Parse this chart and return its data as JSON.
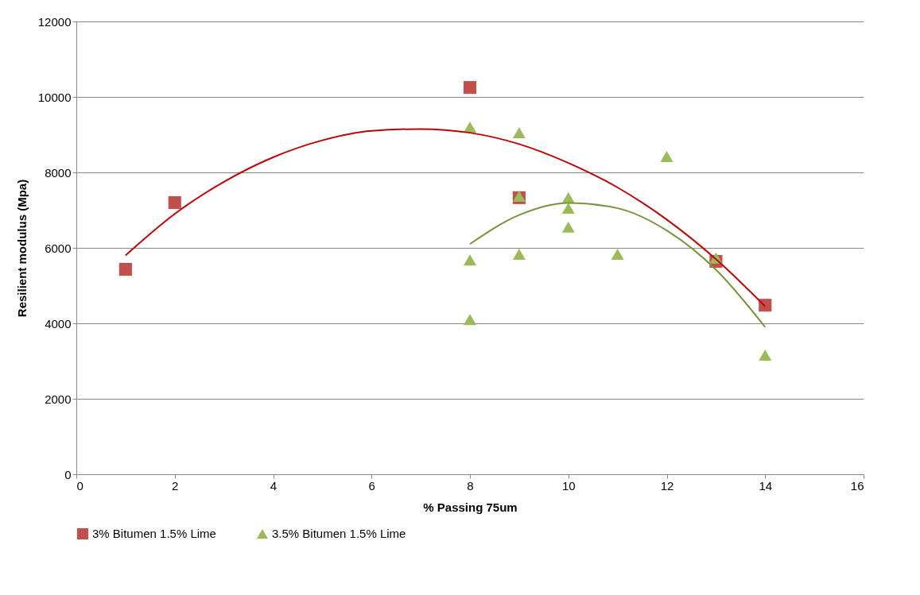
{
  "chart_data": {
    "type": "scatter",
    "xlabel": "% Passing 75um",
    "ylabel": "Resilient modulus (Mpa)",
    "xlim": [
      0,
      16
    ],
    "xticks": [
      0,
      2,
      4,
      6,
      8,
      10,
      12,
      14,
      16
    ],
    "ylim": [
      0,
      12000
    ],
    "yticks": [
      0,
      2000,
      4000,
      6000,
      8000,
      10000,
      12000
    ],
    "grid": "y",
    "legend": "bottom",
    "series": [
      {
        "name": "3% Bitumen 1.5% Lime",
        "color": "#c0504d",
        "marker": "square",
        "x": [
          1,
          2,
          8,
          9,
          13,
          14
        ],
        "values": [
          5430,
          7200,
          10250,
          7330,
          5640,
          4480
        ]
      },
      {
        "name": "3.5% Bitumen 1.5% Lime",
        "color": "#9bbb59",
        "marker": "triangle",
        "x": [
          8,
          8,
          8,
          9,
          9,
          9,
          10,
          10,
          10,
          11,
          12,
          13,
          14
        ],
        "values": [
          9200,
          5680,
          4100,
          9050,
          7370,
          5830,
          7330,
          7050,
          6550,
          5830,
          8420,
          5730,
          3160
        ]
      },
      {
        "type": "line",
        "color": "#c00000",
        "x": [
          1,
          2,
          3,
          4,
          5,
          6,
          7,
          8,
          9,
          10,
          11,
          12,
          13,
          14
        ],
        "values": [
          5800,
          6900,
          7750,
          8400,
          8850,
          9100,
          9150,
          9050,
          8750,
          8250,
          7600,
          6750,
          5700,
          4450
        ]
      },
      {
        "type": "line",
        "color": "#77933c",
        "x": [
          8,
          9,
          10,
          11,
          12,
          13,
          14
        ],
        "values": [
          6100,
          6870,
          7190,
          7050,
          6460,
          5420,
          3900
        ]
      }
    ]
  }
}
